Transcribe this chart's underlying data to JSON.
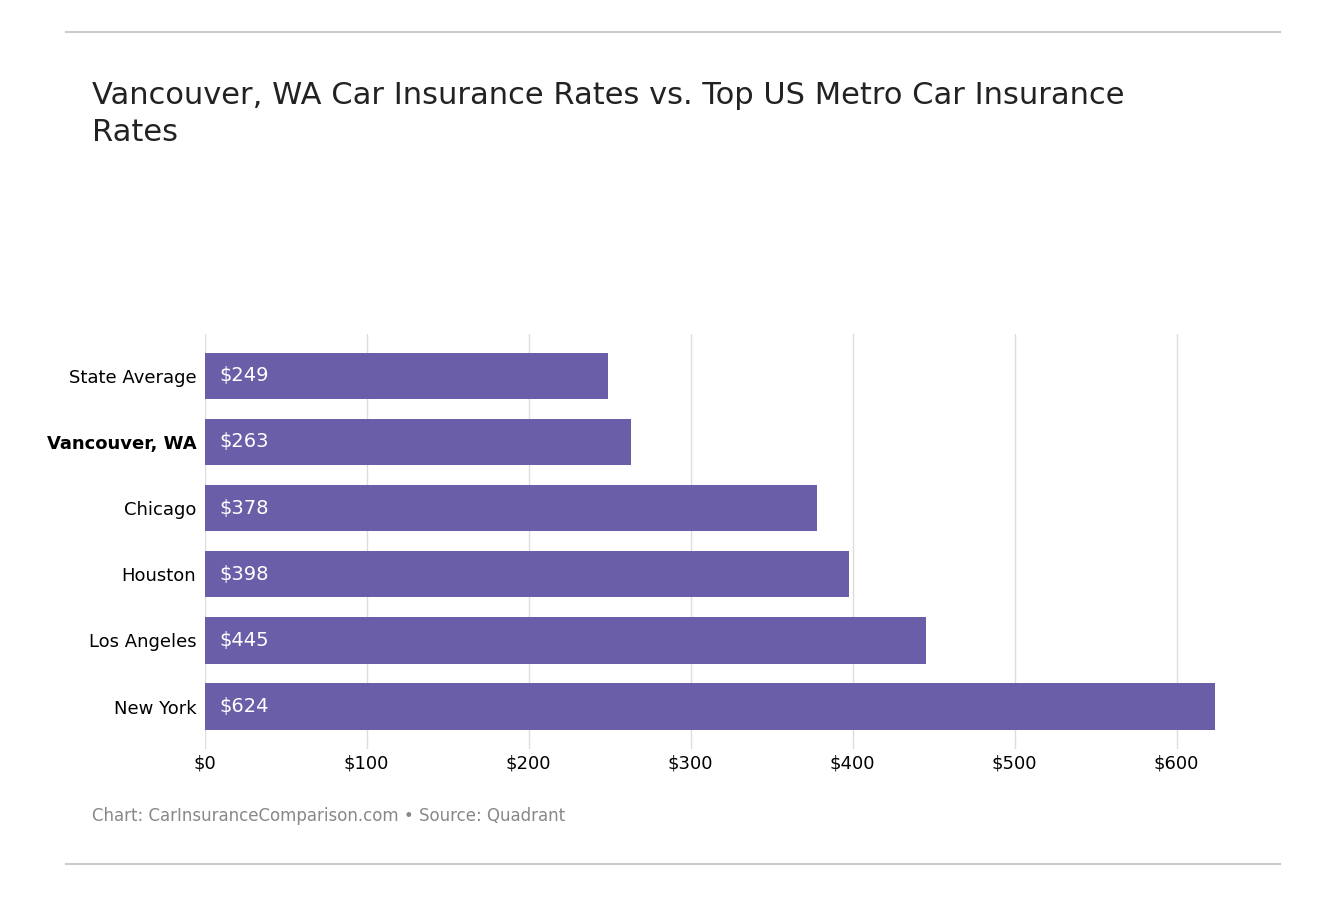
{
  "title": "Vancouver, WA Car Insurance Rates vs. Top US Metro Car Insurance\nRates",
  "categories": [
    "State Average",
    "Vancouver, WA",
    "Chicago",
    "Houston",
    "Los Angeles",
    "New York"
  ],
  "values": [
    249,
    263,
    378,
    398,
    445,
    624
  ],
  "labels": [
    "$249",
    "$263",
    "$378",
    "$398",
    "$445",
    "$624"
  ],
  "bar_color": "#6B5EA8",
  "label_color": "#ffffff",
  "background_color": "#ffffff",
  "title_fontsize": 22,
  "label_fontsize": 14,
  "tick_fontsize": 13,
  "ylabel_bold_index": 1,
  "footer_text": "Chart: CarInsuranceComparison.com • Source: Quadrant",
  "footer_fontsize": 12,
  "footer_color": "#888888",
  "xlim": [
    0,
    660
  ],
  "xticks": [
    0,
    100,
    200,
    300,
    400,
    500,
    600
  ],
  "xtick_labels": [
    "$0",
    "$100",
    "$200",
    "$300",
    "$400",
    "$500",
    "$600"
  ],
  "top_line_color": "#cccccc",
  "bottom_line_color": "#cccccc",
  "grid_color": "#dddddd"
}
